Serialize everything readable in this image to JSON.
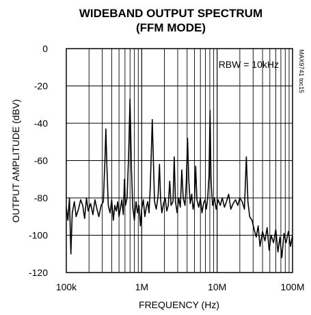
{
  "chart_data": {
    "type": "line",
    "title": [
      "WIDEBAND OUTPUT SPECTRUM",
      "(FFM MODE)"
    ],
    "xlabel": "FREQUENCY (Hz)",
    "ylabel": "OUTPUT AMPLITUDE (dBV)",
    "x_scale": "log",
    "xlim": [
      100000,
      100000000
    ],
    "ylim": [
      -120,
      0
    ],
    "x_ticks": [
      {
        "value": 100000,
        "label": "100k"
      },
      {
        "value": 1000000,
        "label": "1M"
      },
      {
        "value": 10000000,
        "label": "10M"
      },
      {
        "value": 100000000,
        "label": "100M"
      }
    ],
    "y_ticks": [
      {
        "value": 0,
        "label": "0"
      },
      {
        "value": -20,
        "label": "-20"
      },
      {
        "value": -40,
        "label": "-40"
      },
      {
        "value": -60,
        "label": "-60"
      },
      {
        "value": -80,
        "label": "-80"
      },
      {
        "value": -100,
        "label": "-100"
      },
      {
        "value": -120,
        "label": "-120"
      }
    ],
    "grid": true,
    "annotation": "RBW = 10kHz",
    "figure_id": "MAX9741 toc15",
    "series": [
      {
        "points": [
          [
            100000,
            -85
          ],
          [
            105000,
            -92
          ],
          [
            110000,
            -80
          ],
          [
            115000,
            -110
          ],
          [
            120000,
            -88
          ],
          [
            128000,
            -82
          ],
          [
            135000,
            -90
          ],
          [
            145000,
            -86
          ],
          [
            155000,
            -81
          ],
          [
            165000,
            -84
          ],
          [
            175000,
            -91
          ],
          [
            185000,
            -80
          ],
          [
            195000,
            -87
          ],
          [
            210000,
            -83
          ],
          [
            225000,
            -89
          ],
          [
            240000,
            -81
          ],
          [
            255000,
            -86
          ],
          [
            270000,
            -90
          ],
          [
            290000,
            -84
          ],
          [
            310000,
            -82
          ],
          [
            325000,
            -60
          ],
          [
            335000,
            -43
          ],
          [
            345000,
            -62
          ],
          [
            360000,
            -84
          ],
          [
            380000,
            -88
          ],
          [
            400000,
            -81
          ],
          [
            420000,
            -92
          ],
          [
            440000,
            -84
          ],
          [
            460000,
            -87
          ],
          [
            480000,
            -82
          ],
          [
            500000,
            -90
          ],
          [
            520000,
            -86
          ],
          [
            545000,
            -81
          ],
          [
            570000,
            -89
          ],
          [
            590000,
            -70
          ],
          [
            610000,
            -84
          ],
          [
            640000,
            -80
          ],
          [
            670000,
            -58
          ],
          [
            700000,
            -27
          ],
          [
            730000,
            -64
          ],
          [
            760000,
            -85
          ],
          [
            800000,
            -92
          ],
          [
            840000,
            -82
          ],
          [
            880000,
            -88
          ],
          [
            920000,
            -84
          ],
          [
            960000,
            -95
          ],
          [
            1000000,
            -86
          ],
          [
            1050000,
            -81
          ],
          [
            1100000,
            -90
          ],
          [
            1150000,
            -85
          ],
          [
            1200000,
            -82
          ],
          [
            1250000,
            -88
          ],
          [
            1300000,
            -74
          ],
          [
            1340000,
            -55
          ],
          [
            1380000,
            -38
          ],
          [
            1420000,
            -56
          ],
          [
            1480000,
            -82
          ],
          [
            1560000,
            -86
          ],
          [
            1650000,
            -79
          ],
          [
            1720000,
            -62
          ],
          [
            1780000,
            -81
          ],
          [
            1850000,
            -88
          ],
          [
            1950000,
            -83
          ],
          [
            2050000,
            -80
          ],
          [
            2150000,
            -87
          ],
          [
            2250000,
            -84
          ],
          [
            2350000,
            -71
          ],
          [
            2450000,
            -84
          ],
          [
            2600000,
            -82
          ],
          [
            2700000,
            -58
          ],
          [
            2800000,
            -82
          ],
          [
            2950000,
            -88
          ],
          [
            3100000,
            -80
          ],
          [
            3250000,
            -85
          ],
          [
            3400000,
            -65
          ],
          [
            3550000,
            -80
          ],
          [
            3750000,
            -84
          ],
          [
            3900000,
            -72
          ],
          [
            4050000,
            -48
          ],
          [
            4200000,
            -70
          ],
          [
            4400000,
            -83
          ],
          [
            4600000,
            -78
          ],
          [
            4800000,
            -86
          ],
          [
            5000000,
            -82
          ],
          [
            5200000,
            -63
          ],
          [
            5400000,
            -81
          ],
          [
            5700000,
            -85
          ],
          [
            6000000,
            -80
          ],
          [
            6300000,
            -88
          ],
          [
            6600000,
            -83
          ],
          [
            6900000,
            -81
          ],
          [
            7200000,
            -86
          ],
          [
            7500000,
            -80
          ],
          [
            7800000,
            -68
          ],
          [
            8050000,
            -33
          ],
          [
            8300000,
            -70
          ],
          [
            8700000,
            -84
          ],
          [
            9200000,
            -80
          ],
          [
            9700000,
            -86
          ],
          [
            10300000,
            -81
          ],
          [
            11000000,
            -84
          ],
          [
            11700000,
            -80
          ],
          [
            12500000,
            -85
          ],
          [
            13300000,
            -82
          ],
          [
            14200000,
            -78
          ],
          [
            15200000,
            -86
          ],
          [
            16300000,
            -83
          ],
          [
            17500000,
            -81
          ],
          [
            18800000,
            -84
          ],
          [
            20000000,
            -80
          ],
          [
            21500000,
            -82
          ],
          [
            23000000,
            -86
          ],
          [
            24400000,
            -58
          ],
          [
            25600000,
            -82
          ],
          [
            27000000,
            -90
          ],
          [
            29000000,
            -92
          ],
          [
            31000000,
            -97
          ],
          [
            33000000,
            -101
          ],
          [
            35000000,
            -95
          ],
          [
            37000000,
            -106
          ],
          [
            40000000,
            -98
          ],
          [
            43000000,
            -103
          ],
          [
            46000000,
            -96
          ],
          [
            49000000,
            -108
          ],
          [
            52000000,
            -100
          ],
          [
            56000000,
            -104
          ],
          [
            60000000,
            -97
          ],
          [
            64000000,
            -109
          ],
          [
            68000000,
            -101
          ],
          [
            72000000,
            -112
          ],
          [
            77000000,
            -99
          ],
          [
            82000000,
            -104
          ],
          [
            88000000,
            -98
          ],
          [
            94000000,
            -106
          ],
          [
            100000000,
            -100
          ]
        ]
      }
    ]
  }
}
